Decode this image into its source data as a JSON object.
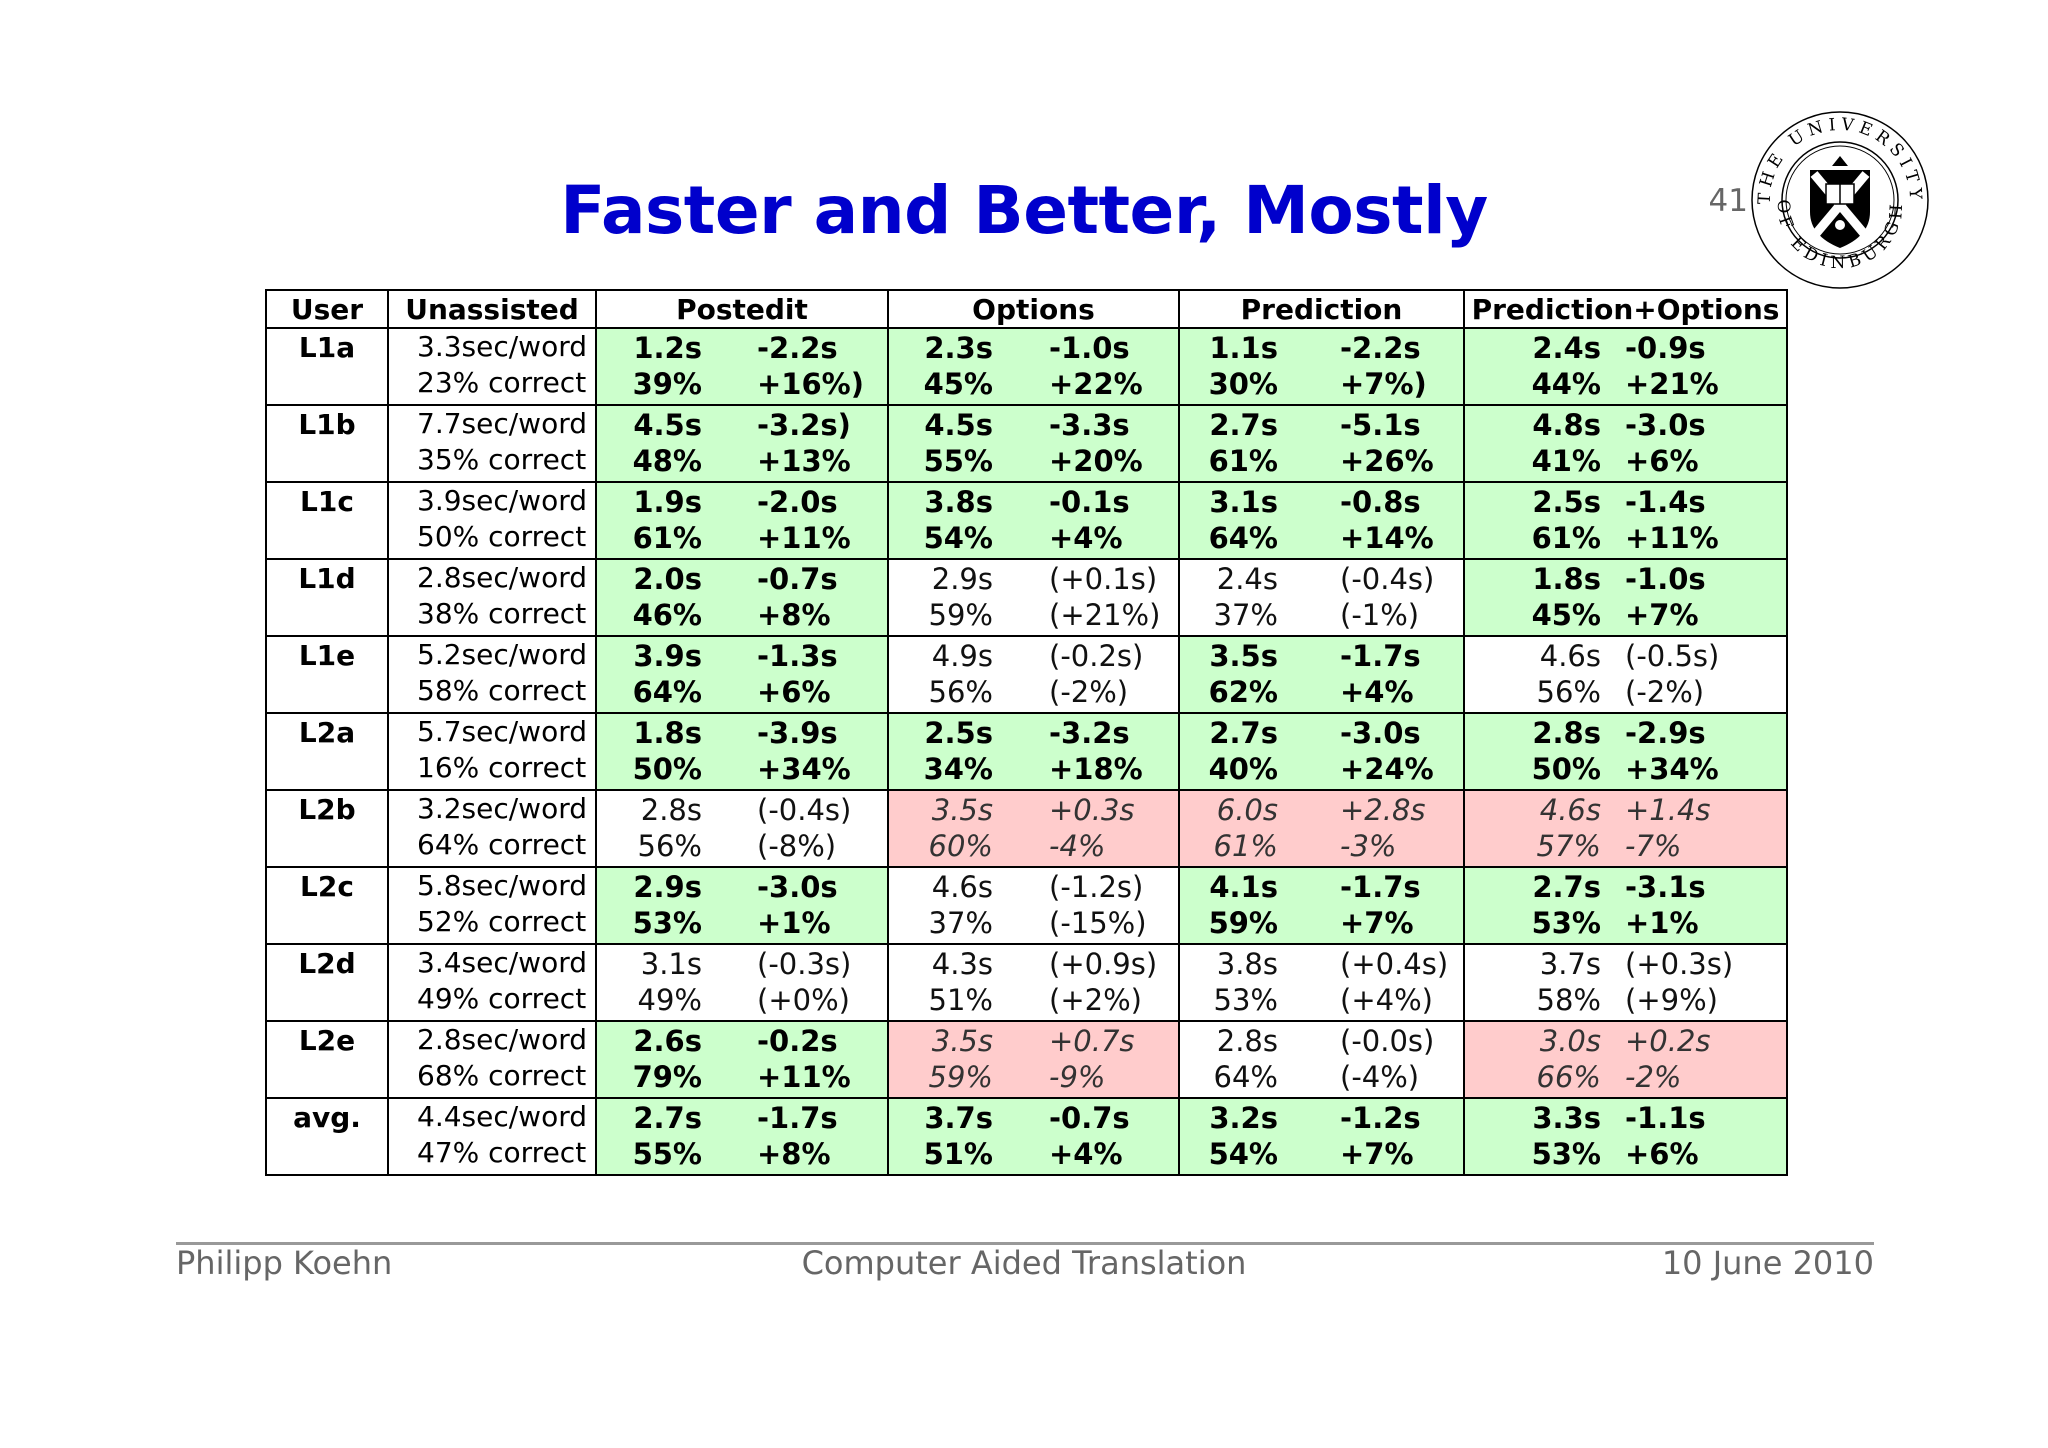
{
  "title": "Faster and Better, Mostly",
  "page_number": "41",
  "logo": {
    "text_top": "THE UNIVERSITY",
    "text_bottom": "OF EDINBURGH"
  },
  "table": {
    "headers": [
      "User",
      "Unassisted",
      "Postedit",
      "Options",
      "Prediction",
      "Prediction+Options"
    ],
    "rows": [
      {
        "user": "L1a",
        "unassisted": [
          "3.3sec/word",
          "23% correct"
        ],
        "cells": [
          {
            "style": "green",
            "time": "1.2s",
            "dtime": "-2.2s",
            "acc": "39%",
            "dacc": "+16%)"
          },
          {
            "style": "green",
            "time": "2.3s",
            "dtime": "-1.0s",
            "acc": "45%",
            "dacc": "+22%"
          },
          {
            "style": "green",
            "time": "1.1s",
            "dtime": "-2.2s",
            "acc": "30%",
            "dacc": "+7%)"
          },
          {
            "style": "green",
            "time": "2.4s",
            "dtime": "-0.9s",
            "acc": "44%",
            "dacc": "+21%"
          }
        ]
      },
      {
        "user": "L1b",
        "unassisted": [
          "7.7sec/word",
          "35% correct"
        ],
        "cells": [
          {
            "style": "green",
            "time": "4.5s",
            "dtime": "-3.2s)",
            "acc": "48%",
            "dacc": "+13%"
          },
          {
            "style": "green",
            "time": "4.5s",
            "dtime": "-3.3s",
            "acc": "55%",
            "dacc": "+20%"
          },
          {
            "style": "green",
            "time": "2.7s",
            "dtime": "-5.1s",
            "acc": "61%",
            "dacc": "+26%"
          },
          {
            "style": "green",
            "time": "4.8s",
            "dtime": "-3.0s",
            "acc": "41%",
            "dacc": "+6%"
          }
        ]
      },
      {
        "user": "L1c",
        "unassisted": [
          "3.9sec/word",
          "50% correct"
        ],
        "cells": [
          {
            "style": "green",
            "time": "1.9s",
            "dtime": "-2.0s",
            "acc": "61%",
            "dacc": "+11%"
          },
          {
            "style": "green",
            "time": "3.8s",
            "dtime": "-0.1s",
            "acc": "54%",
            "dacc": "+4%"
          },
          {
            "style": "green",
            "time": "3.1s",
            "dtime": "-0.8s",
            "acc": "64%",
            "dacc": "+14%"
          },
          {
            "style": "green",
            "time": "2.5s",
            "dtime": "-1.4s",
            "acc": "61%",
            "dacc": "+11%"
          }
        ]
      },
      {
        "user": "L1d",
        "unassisted": [
          "2.8sec/word",
          "38% correct"
        ],
        "cells": [
          {
            "style": "green",
            "time": "2.0s",
            "dtime": "-0.7s",
            "acc": "46%",
            "dacc": "+8%"
          },
          {
            "style": "white",
            "time": "2.9s",
            "dtime": "(+0.1s)",
            "acc": "59%",
            "dacc": "(+21%)"
          },
          {
            "style": "white",
            "time": "2.4s",
            "dtime": "(-0.4s)",
            "acc": "37%",
            "dacc": "(-1%)"
          },
          {
            "style": "green",
            "time": "1.8s",
            "dtime": "-1.0s",
            "acc": "45%",
            "dacc": "+7%"
          }
        ]
      },
      {
        "user": "L1e",
        "unassisted": [
          "5.2sec/word",
          "58% correct"
        ],
        "cells": [
          {
            "style": "green",
            "time": "3.9s",
            "dtime": "-1.3s",
            "acc": "64%",
            "dacc": "+6%"
          },
          {
            "style": "white",
            "time": "4.9s",
            "dtime": "(-0.2s)",
            "acc": "56%",
            "dacc": "(-2%)"
          },
          {
            "style": "green",
            "time": "3.5s",
            "dtime": "-1.7s",
            "acc": "62%",
            "dacc": "+4%"
          },
          {
            "style": "white",
            "time": "4.6s",
            "dtime": "(-0.5s)",
            "acc": "56%",
            "dacc": "(-2%)"
          }
        ]
      },
      {
        "user": "L2a",
        "unassisted": [
          "5.7sec/word",
          "16% correct"
        ],
        "cells": [
          {
            "style": "green",
            "time": "1.8s",
            "dtime": "-3.9s",
            "acc": "50%",
            "dacc": "+34%"
          },
          {
            "style": "green",
            "time": "2.5s",
            "dtime": "-3.2s",
            "acc": "34%",
            "dacc": "+18%"
          },
          {
            "style": "green",
            "time": "2.7s",
            "dtime": "-3.0s",
            "acc": "40%",
            "dacc": "+24%"
          },
          {
            "style": "green",
            "time": "2.8s",
            "dtime": "-2.9s",
            "acc": "50%",
            "dacc": "+34%"
          }
        ]
      },
      {
        "user": "L2b",
        "unassisted": [
          "3.2sec/word",
          "64% correct"
        ],
        "cells": [
          {
            "style": "white",
            "time": "2.8s",
            "dtime": "(-0.4s)",
            "acc": "56%",
            "dacc": "(-8%)"
          },
          {
            "style": "red",
            "time": "3.5s",
            "dtime": "+0.3s",
            "acc": "60%",
            "dacc": "-4%"
          },
          {
            "style": "red",
            "time": "6.0s",
            "dtime": "+2.8s",
            "acc": "61%",
            "dacc": "-3%"
          },
          {
            "style": "red",
            "time": "4.6s",
            "dtime": "+1.4s",
            "acc": "57%",
            "dacc": "-7%"
          }
        ]
      },
      {
        "user": "L2c",
        "unassisted": [
          "5.8sec/word",
          "52% correct"
        ],
        "cells": [
          {
            "style": "green",
            "time": "2.9s",
            "dtime": "-3.0s",
            "acc": "53%",
            "dacc": "+1%"
          },
          {
            "style": "white",
            "time": "4.6s",
            "dtime": "(-1.2s)",
            "acc": "37%",
            "dacc": "(-15%)"
          },
          {
            "style": "green",
            "time": "4.1s",
            "dtime": "-1.7s",
            "acc": "59%",
            "dacc": "+7%"
          },
          {
            "style": "green",
            "time": "2.7s",
            "dtime": "-3.1s",
            "acc": "53%",
            "dacc": "+1%"
          }
        ]
      },
      {
        "user": "L2d",
        "unassisted": [
          "3.4sec/word",
          "49% correct"
        ],
        "cells": [
          {
            "style": "white",
            "time": "3.1s",
            "dtime": "(-0.3s)",
            "acc": "49%",
            "dacc": "(+0%)"
          },
          {
            "style": "white",
            "time": "4.3s",
            "dtime": "(+0.9s)",
            "acc": "51%",
            "dacc": "(+2%)"
          },
          {
            "style": "white",
            "time": "3.8s",
            "dtime": "(+0.4s)",
            "acc": "53%",
            "dacc": "(+4%)"
          },
          {
            "style": "white",
            "time": "3.7s",
            "dtime": "(+0.3s)",
            "acc": "58%",
            "dacc": "(+9%)"
          }
        ]
      },
      {
        "user": "L2e",
        "unassisted": [
          "2.8sec/word",
          "68% correct"
        ],
        "cells": [
          {
            "style": "green",
            "time": "2.6s",
            "dtime": "-0.2s",
            "acc": "79%",
            "dacc": "+11%"
          },
          {
            "style": "red",
            "time": "3.5s",
            "dtime": "+0.7s",
            "acc": "59%",
            "dacc": "-9%"
          },
          {
            "style": "white",
            "time": "2.8s",
            "dtime": "(-0.0s)",
            "acc": "64%",
            "dacc": "(-4%)"
          },
          {
            "style": "red",
            "time": "3.0s",
            "dtime": "+0.2s",
            "acc": "66%",
            "dacc": "-2%"
          }
        ]
      },
      {
        "user": "avg.",
        "unassisted": [
          "4.4sec/word",
          "47% correct"
        ],
        "cells": [
          {
            "style": "green",
            "time": "2.7s",
            "dtime": "-1.7s",
            "acc": "55%",
            "dacc": "+8%"
          },
          {
            "style": "green",
            "time": "3.7s",
            "dtime": "-0.7s",
            "acc": "51%",
            "dacc": "+4%"
          },
          {
            "style": "green",
            "time": "3.2s",
            "dtime": "-1.2s",
            "acc": "54%",
            "dacc": "+7%"
          },
          {
            "style": "green",
            "time": "3.3s",
            "dtime": "-1.1s",
            "acc": "53%",
            "dacc": "+6%"
          }
        ]
      }
    ]
  },
  "footer": {
    "author": "Philipp Koehn",
    "center": "Computer Aided Translation",
    "date": "10 June 2010"
  },
  "colors": {
    "title": "#0000cc",
    "green": "#ccffcc",
    "red": "#ffcccc",
    "footer": "#666666"
  }
}
